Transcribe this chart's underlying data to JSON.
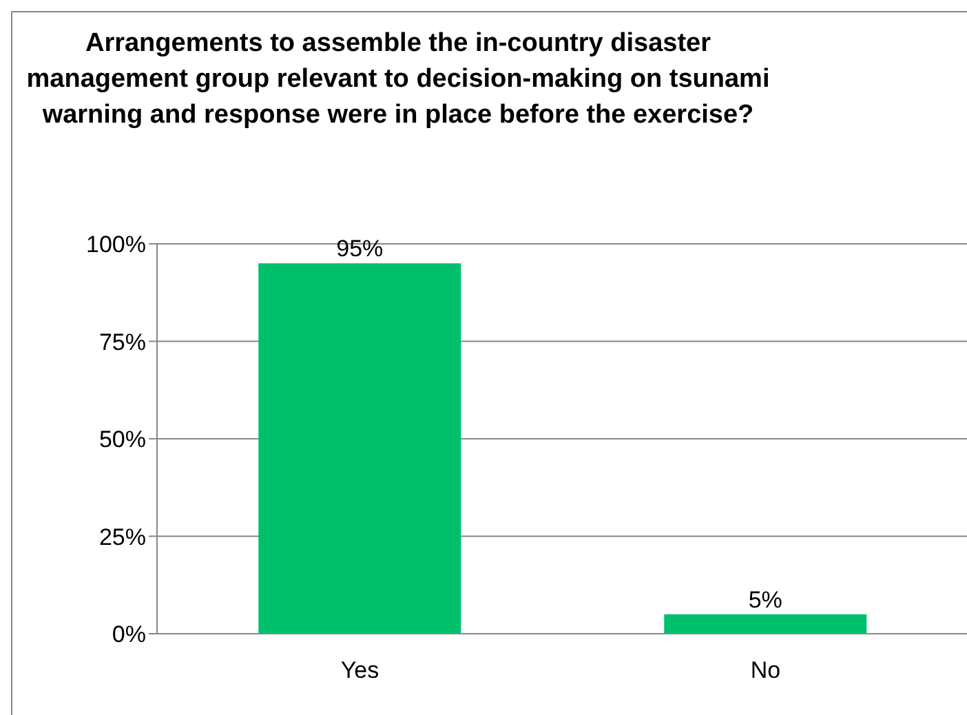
{
  "chart_data": {
    "type": "bar",
    "title": "Arrangements to assemble the in-country disaster management group relevant to decision-making on tsunami warning and response were in place before the exercise?",
    "categories": [
      "Yes",
      "No"
    ],
    "values": [
      95,
      5
    ],
    "value_labels": [
      "95%",
      "5%"
    ],
    "color": "#00c06c",
    "ylim": [
      0,
      100
    ],
    "yticks": [
      {
        "value": 0,
        "label": "0%"
      },
      {
        "value": 25,
        "label": "25%"
      },
      {
        "value": 50,
        "label": "50%"
      },
      {
        "value": 75,
        "label": "75%"
      },
      {
        "value": 100,
        "label": "100%"
      }
    ],
    "grid": "y"
  }
}
